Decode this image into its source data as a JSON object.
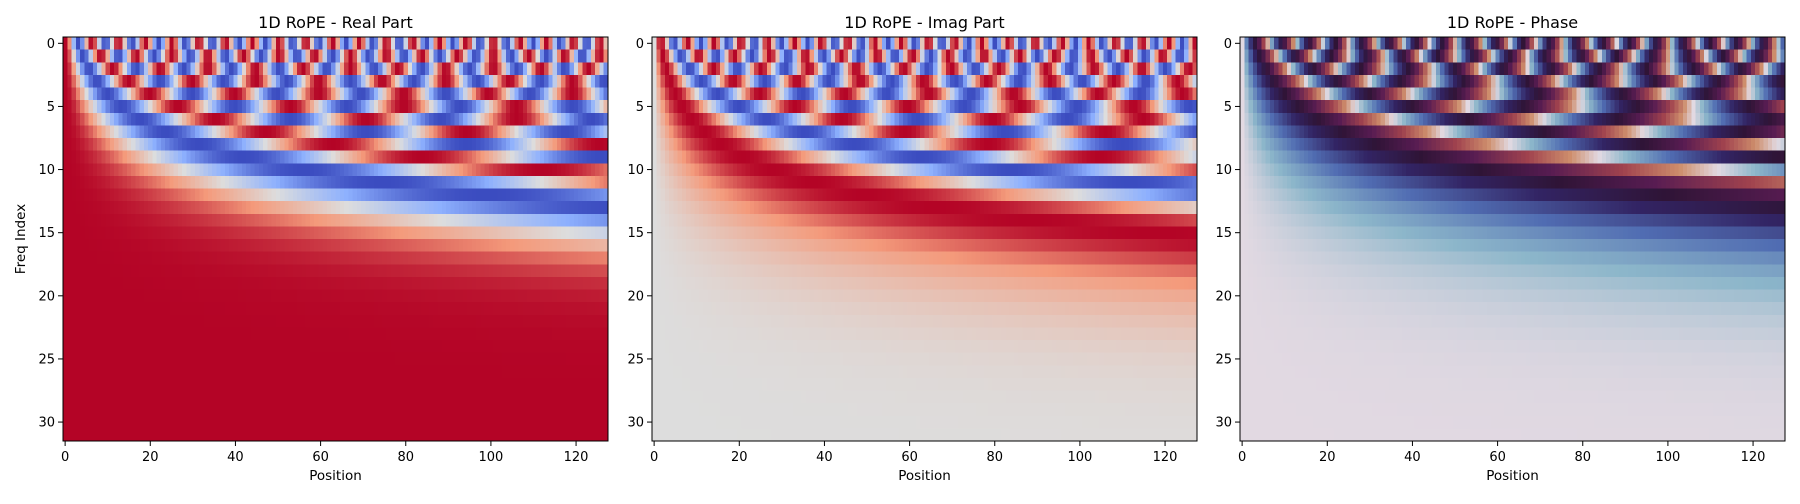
{
  "chart_data": [
    {
      "type": "heatmap",
      "title": "1D RoPE - Real Part",
      "xlabel": "Position",
      "ylabel": "Freq Index",
      "colormap": "coolwarm",
      "function": "cos(position * 10000^(-freq_index/32))",
      "x": {
        "min": 0,
        "max": 127,
        "ticks": [
          0,
          20,
          40,
          60,
          80,
          100,
          120
        ]
      },
      "y": {
        "min": 0,
        "max": 31,
        "ticks": [
          0,
          5,
          10,
          15,
          20,
          25,
          30
        ],
        "inverted": true
      },
      "value_range": [
        -1,
        1
      ]
    },
    {
      "type": "heatmap",
      "title": "1D RoPE - Imag Part",
      "xlabel": "Position",
      "ylabel": "",
      "colormap": "coolwarm",
      "function": "sin(position * 10000^(-freq_index/32))",
      "x": {
        "min": 0,
        "max": 127,
        "ticks": [
          0,
          20,
          40,
          60,
          80,
          100,
          120
        ]
      },
      "y": {
        "min": 0,
        "max": 31,
        "ticks": [
          0,
          5,
          10,
          15,
          20,
          25,
          30
        ],
        "inverted": true
      },
      "value_range": [
        -1,
        1
      ]
    },
    {
      "type": "heatmap",
      "title": "1D RoPE - Phase",
      "xlabel": "Position",
      "ylabel": "",
      "colormap": "twilight_shifted",
      "function": "angle(exp(i * position * 10000^(-freq_index/32)))",
      "x": {
        "min": 0,
        "max": 127,
        "ticks": [
          0,
          20,
          40,
          60,
          80,
          100,
          120
        ]
      },
      "y": {
        "min": 0,
        "max": 31,
        "ticks": [
          0,
          5,
          10,
          15,
          20,
          25,
          30
        ],
        "inverted": true
      },
      "value_range": [
        -3.1416,
        3.1416
      ]
    }
  ]
}
